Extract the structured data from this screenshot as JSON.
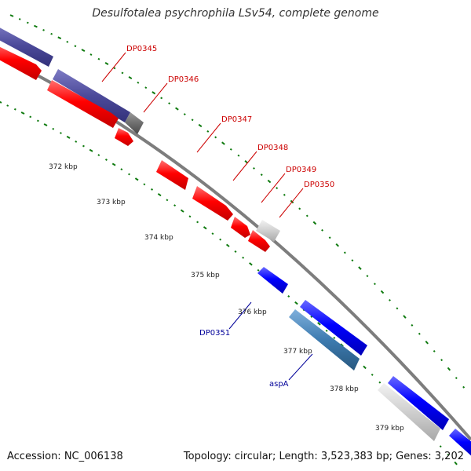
{
  "title": "Desulfotalea psychrophila LSv54, complete genome",
  "footer": {
    "accession": "Accession: NC_006138",
    "topology": "Topology: circular; Length: 3,523,383 bp; Genes: 3,202"
  },
  "scale": {
    "tick_labels": [
      "372 kbp",
      "373 kbp",
      "374 kbp",
      "375 kbp",
      "376 kbp",
      "377 kbp",
      "378 kbp",
      "379 kbp"
    ]
  },
  "genes": [
    {
      "label": "DP0345",
      "strand": "forward",
      "color": "#ff0000"
    },
    {
      "label": "DP0346",
      "strand": "forward",
      "color": "#ff0000"
    },
    {
      "label": "DP0347",
      "strand": "forward",
      "color": "#ff0000"
    },
    {
      "label": "DP0348",
      "strand": "forward",
      "color": "#ff0000"
    },
    {
      "label": "DP0349",
      "strand": "forward",
      "color": "#ff0000"
    },
    {
      "label": "DP0350",
      "strand": "forward",
      "color": "#ff0000"
    },
    {
      "label": "DP0351",
      "strand": "reverse",
      "color": "#0000ff"
    },
    {
      "label": "aspA",
      "strand": "reverse",
      "color": "#0000ff"
    }
  ],
  "colors": {
    "forward_gene": "#ff0000",
    "reverse_gene": "#0000ff",
    "forward_label": "#cc0000",
    "reverse_label": "#000099",
    "purple_feature": "#4c4a9a",
    "steel_feature": "#3d7bb0",
    "grey_feature": "#777777",
    "light_feature": "#c8c8c8",
    "backbone": "#7d7d7d",
    "gc_dots": "#0e7a0e"
  }
}
